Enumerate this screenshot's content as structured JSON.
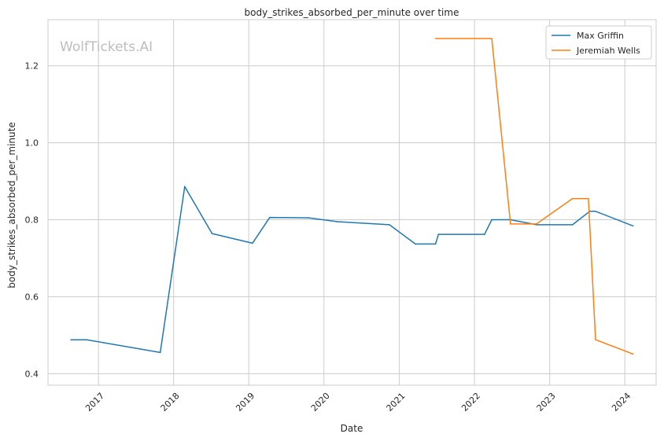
{
  "chart_data": {
    "type": "line",
    "title": "body_strikes_absorbed_per_minute over time",
    "xlabel": "Date",
    "ylabel": "body_strikes_absorbed_per_minute",
    "watermark": "WolfTickets.AI",
    "xlim": [
      "2016-05-01",
      "2024-06-01"
    ],
    "ylim": [
      0.37,
      1.32
    ],
    "grid": true,
    "legend_position": "top-right",
    "x_ticks": [
      "2017",
      "2018",
      "2019",
      "2020",
      "2021",
      "2022",
      "2023",
      "2024"
    ],
    "y_ticks": [
      "0.4",
      "0.6",
      "0.8",
      "1.0",
      "1.2"
    ],
    "series": [
      {
        "name": "Max Griffin",
        "color": "#1f77b4",
        "points": [
          {
            "x": "2016-08-20",
            "y": 0.488
          },
          {
            "x": "2016-11-05",
            "y": 0.488
          },
          {
            "x": "2017-10-28",
            "y": 0.455
          },
          {
            "x": "2018-02-24",
            "y": 0.886
          },
          {
            "x": "2018-07-07",
            "y": 0.764
          },
          {
            "x": "2019-01-19",
            "y": 0.739
          },
          {
            "x": "2019-04-13",
            "y": 0.806
          },
          {
            "x": "2019-10-18",
            "y": 0.805
          },
          {
            "x": "2020-03-07",
            "y": 0.795
          },
          {
            "x": "2020-11-14",
            "y": 0.787
          },
          {
            "x": "2021-03-20",
            "y": 0.737
          },
          {
            "x": "2021-06-26",
            "y": 0.737
          },
          {
            "x": "2021-07-10",
            "y": 0.762
          },
          {
            "x": "2022-02-19",
            "y": 0.762
          },
          {
            "x": "2022-03-26",
            "y": 0.8
          },
          {
            "x": "2022-06-25",
            "y": 0.8
          },
          {
            "x": "2022-10-29",
            "y": 0.787
          },
          {
            "x": "2023-04-22",
            "y": 0.787
          },
          {
            "x": "2023-07-15",
            "y": 0.822
          },
          {
            "x": "2023-08-12",
            "y": 0.822
          },
          {
            "x": "2024-02-10",
            "y": 0.784
          }
        ]
      },
      {
        "name": "Jeremiah Wells",
        "color": "#ff7f0e",
        "points": [
          {
            "x": "2021-06-26",
            "y": 1.271
          },
          {
            "x": "2022-03-26",
            "y": 1.271
          },
          {
            "x": "2022-06-25",
            "y": 0.789
          },
          {
            "x": "2022-10-29",
            "y": 0.789
          },
          {
            "x": "2023-04-22",
            "y": 0.855
          },
          {
            "x": "2023-07-08",
            "y": 0.855
          },
          {
            "x": "2023-08-12",
            "y": 0.488
          },
          {
            "x": "2024-02-10",
            "y": 0.451
          }
        ]
      }
    ]
  }
}
